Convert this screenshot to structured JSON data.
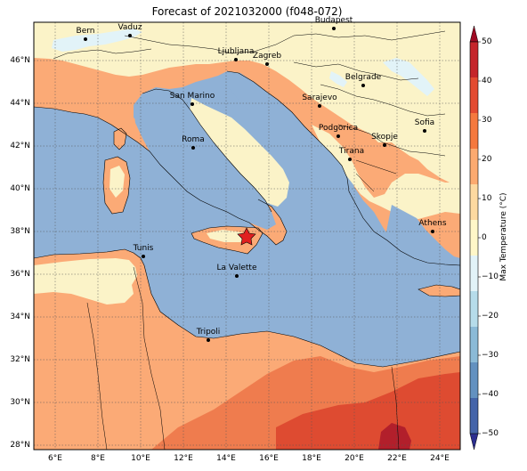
{
  "map": {
    "title": "Forecast of 2021032000 (f048-072)",
    "lat_labels": [
      "46°N",
      "44°N",
      "42°N",
      "40°N",
      "38°N",
      "36°N",
      "34°N",
      "32°N",
      "30°N",
      "28°N"
    ],
    "lon_labels": [
      "6°E",
      "8°E",
      "10°E",
      "12°E",
      "14°E",
      "16°E",
      "18°E",
      "20°E",
      "22°E",
      "24°E"
    ],
    "colorbar": {
      "label": "Max Temperature (°C)",
      "ticks": [
        "50",
        "40",
        "30",
        "20",
        "10",
        "0",
        "−10",
        "−20",
        "−30",
        "−40",
        "−50"
      ],
      "colors": [
        "#9e0a23",
        "#c5252b",
        "#e34b31",
        "#f5793e",
        "#fcaa70",
        "#fdd9a0",
        "#fff7c8",
        "#e2f3f8",
        "#b6dcea",
        "#8bbad7",
        "#6391c0",
        "#4464a9",
        "#2c2e8f"
      ]
    },
    "fill_colors": {
      "sea": "#8fb1d6",
      "land_cool": "#fbf3c8",
      "land_mild": "#fbaa76",
      "land_warm": "#ef7c4e",
      "land_hot": "#de4b31",
      "land_vhot": "#b21f2b",
      "snow": "#e2f3f8",
      "marker": "#e02020"
    },
    "cities": [
      {
        "name": "Bern"
      },
      {
        "name": "Vaduz"
      },
      {
        "name": "Budapest"
      },
      {
        "name": "Ljubljana"
      },
      {
        "name": "Zagreb"
      },
      {
        "name": "Belgrade"
      },
      {
        "name": "San Marino"
      },
      {
        "name": "Sarajevo"
      },
      {
        "name": "Sofia"
      },
      {
        "name": "Podgorica"
      },
      {
        "name": "Skopje"
      },
      {
        "name": "Roma"
      },
      {
        "name": "Tirana"
      },
      {
        "name": "Athens"
      },
      {
        "name": "Tunis"
      },
      {
        "name": "La Valette"
      },
      {
        "name": "Tripoli"
      }
    ]
  }
}
